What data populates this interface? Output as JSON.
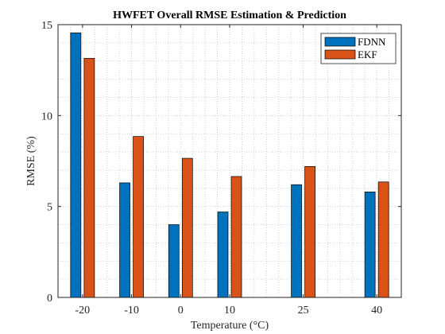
{
  "chart_data": {
    "type": "bar",
    "title": "HWFET Overall RMSE Estimation & Prediction",
    "xlabel": "Temperature (°C)",
    "ylabel": "RMSE (%)",
    "categories": [
      -20,
      -10,
      0,
      10,
      25,
      40
    ],
    "xlim": [
      -25,
      45
    ],
    "ylim": [
      0,
      15
    ],
    "yticks": [
      0,
      5,
      10,
      15
    ],
    "grid": "minor-dotted",
    "legend_position": "top-right",
    "series": [
      {
        "name": "FDNN",
        "color": "#0072BD",
        "values": [
          14.55,
          6.3,
          4.0,
          4.7,
          6.2,
          5.8
        ]
      },
      {
        "name": "EKF",
        "color": "#D95319",
        "values": [
          13.15,
          8.85,
          7.65,
          6.65,
          7.2,
          6.35
        ]
      }
    ]
  }
}
